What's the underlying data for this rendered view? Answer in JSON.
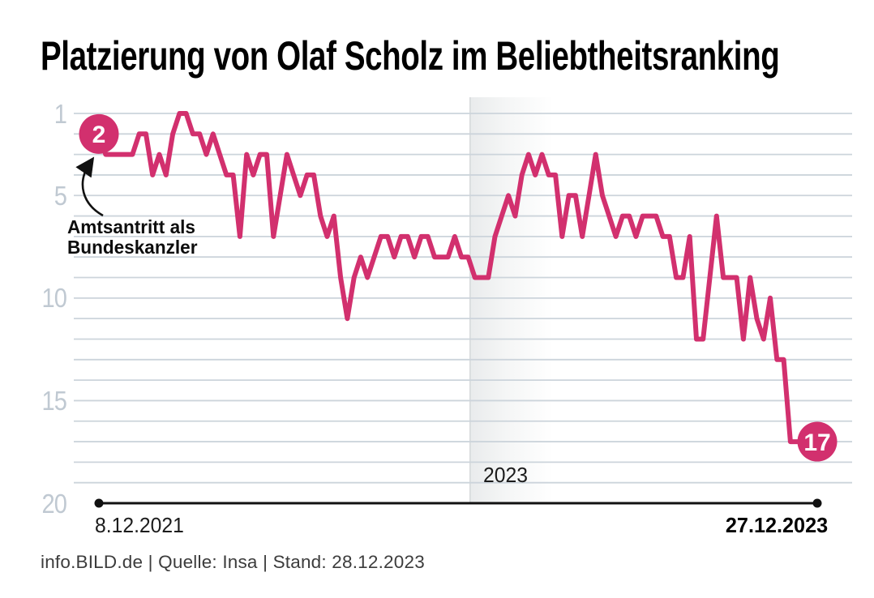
{
  "title": "Platzierung von Olaf Scholz im Beliebtheitsranking",
  "annotation": {
    "line1": "Amtsantritt als",
    "line2": "Bundeskanzler"
  },
  "footer": "info.BILD.de | Quelle: Insa | Stand: 28.12.2023",
  "colors": {
    "line": "#d2306e",
    "grid": "#ccd4db",
    "tick_label": "#c0c9d2",
    "axis": "#111111",
    "footer_text": "#3c3c3c",
    "band_edge": "#d7dadc",
    "band_start": "#e9ebec",
    "marker_text": "#ffffff"
  },
  "chart_data": {
    "type": "line",
    "title": "Platzierung von Olaf Scholz im Beliebtheitsranking",
    "y_axis": {
      "ticks": [
        1,
        5,
        10,
        15,
        20
      ],
      "min": 1,
      "max": 20,
      "inverted": true,
      "grid": true
    },
    "x_start_label": "8.12.2021",
    "x_end_label": "27.12.2023",
    "year_divider_label": "2023",
    "start_marker_label": "2",
    "end_marker_label": "17",
    "values": [
      2,
      3,
      3,
      3,
      3,
      3,
      2,
      2,
      4,
      3,
      4,
      2,
      1,
      1,
      2,
      2,
      3,
      2,
      3,
      4,
      4,
      7,
      3,
      4,
      3,
      3,
      7,
      5,
      3,
      4,
      5,
      4,
      4,
      6,
      7,
      6,
      9,
      11,
      9,
      8,
      9,
      8,
      7,
      7,
      8,
      7,
      7,
      8,
      7,
      7,
      8,
      8,
      8,
      7,
      8,
      8,
      9,
      9,
      9,
      7,
      6,
      5,
      6,
      4,
      3,
      4,
      3,
      4,
      4,
      7,
      5,
      5,
      7,
      5,
      3,
      5,
      6,
      7,
      6,
      6,
      7,
      6,
      6,
      6,
      7,
      7,
      9,
      9,
      7,
      12,
      12,
      9,
      6,
      9,
      9,
      9,
      12,
      9,
      11,
      12,
      10,
      13,
      13,
      17,
      17,
      17,
      17,
      17
    ]
  }
}
